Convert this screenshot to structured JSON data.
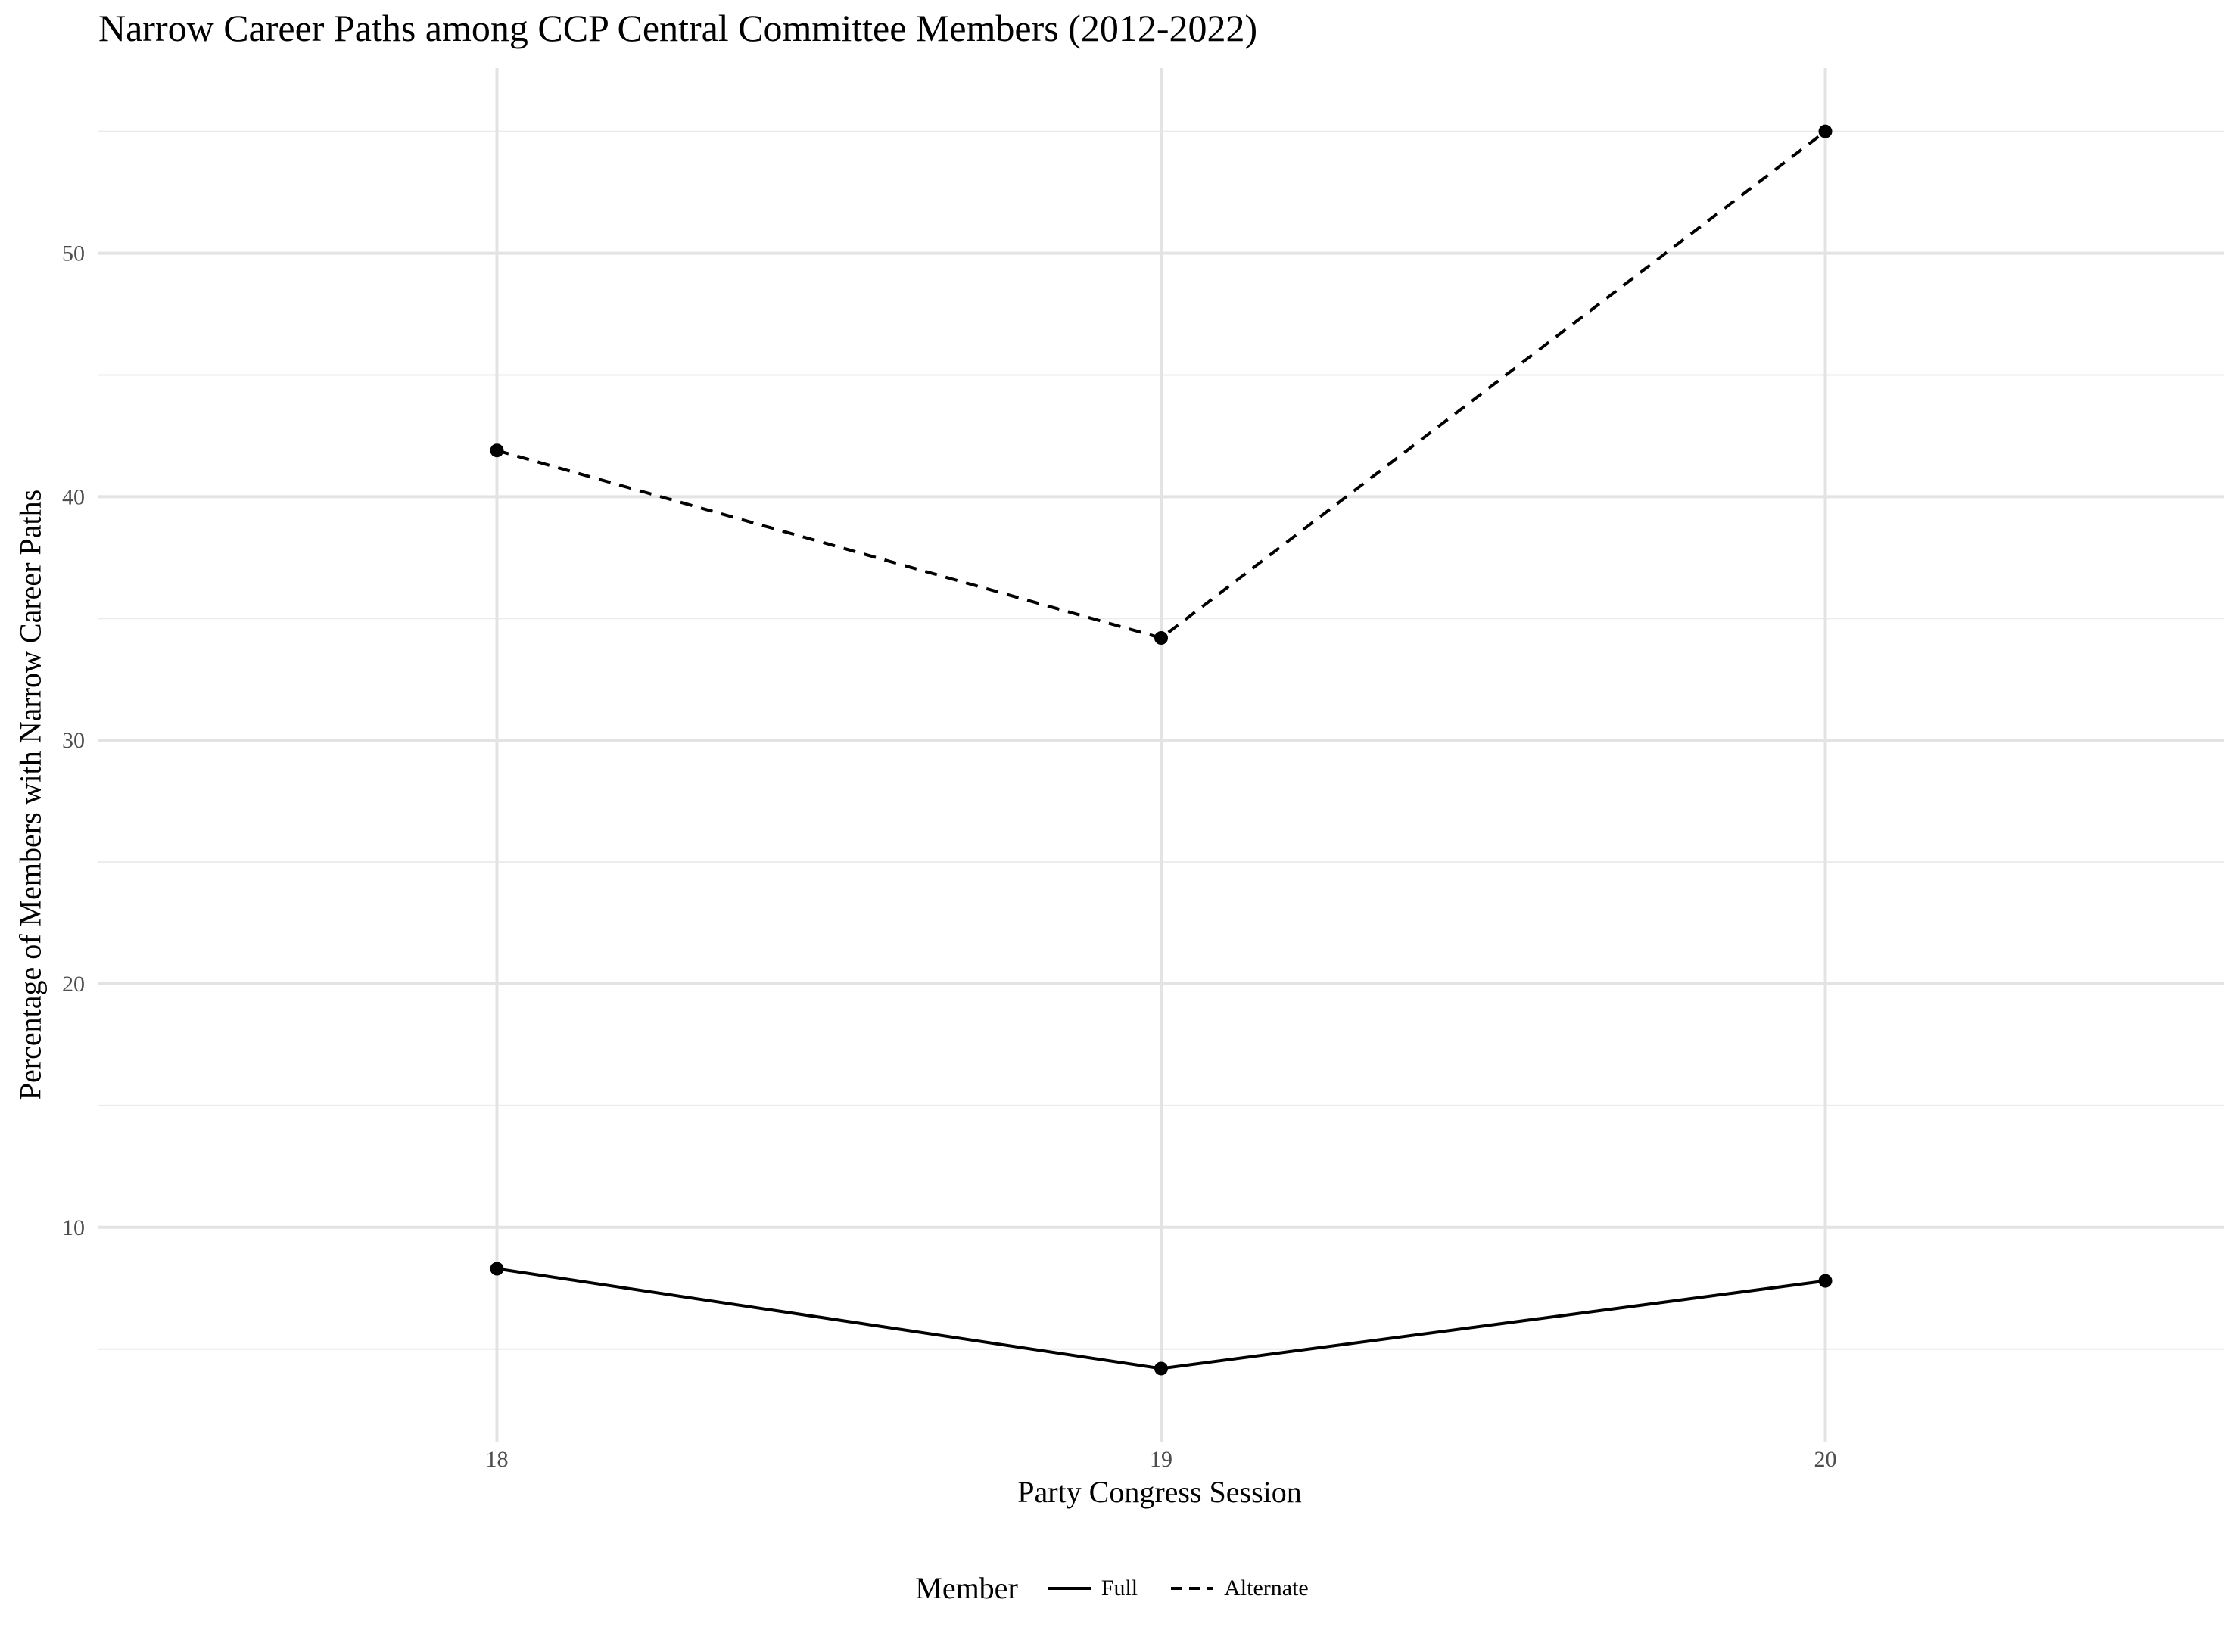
{
  "chart_data": {
    "type": "line",
    "title": "Narrow Career Paths among CCP Central Committee Members (2012-2022)",
    "xlabel": "Party Congress Session",
    "ylabel": "Percentage of Members with Narrow Career Paths",
    "x": [
      18,
      19,
      20
    ],
    "x_ticks": [
      "18",
      "19",
      "20"
    ],
    "y_ticks": [
      "10",
      "20",
      "30",
      "40",
      "50"
    ],
    "xlim": [
      17.4,
      20.6
    ],
    "ylim": [
      1.2,
      57.6
    ],
    "grid": true,
    "legend_title": "Member",
    "legend_position": "bottom",
    "series": [
      {
        "name": "Full",
        "values": [
          8.3,
          4.2,
          7.8
        ],
        "linestyle": "solid",
        "color": "#000000"
      },
      {
        "name": "Alternate",
        "values": [
          41.9,
          34.2,
          55.0
        ],
        "linestyle": "dashed",
        "color": "#000000"
      }
    ]
  }
}
